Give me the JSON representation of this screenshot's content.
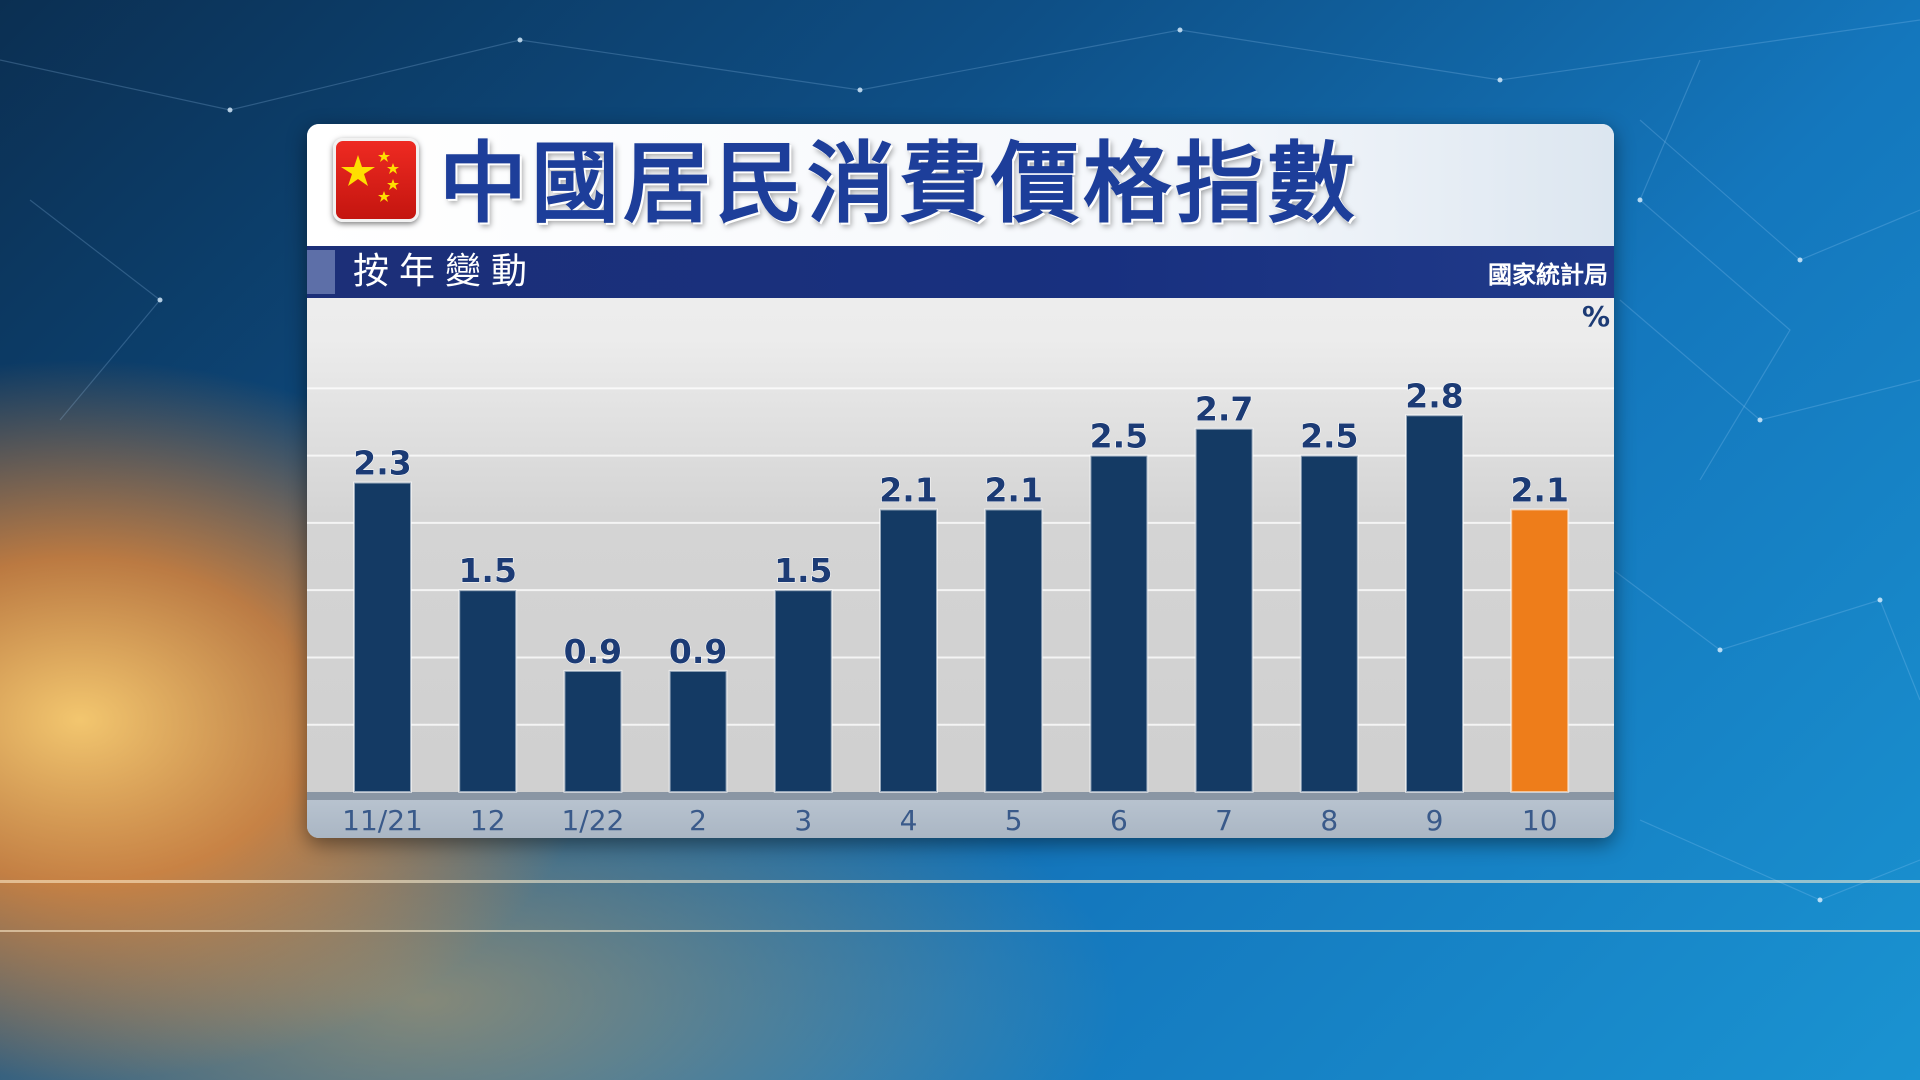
{
  "header": {
    "title": "中國居民消費價格指數",
    "subtitle": "按年變動",
    "source": "國家統計局"
  },
  "flag_icon": "china-flag-icon",
  "chart_data": {
    "type": "bar",
    "unit_label": "%",
    "categories": [
      "11/21",
      "12",
      "1/22",
      "2",
      "3",
      "4",
      "5",
      "6",
      "7",
      "8",
      "9",
      "10"
    ],
    "values": [
      2.3,
      1.5,
      0.9,
      0.9,
      1.5,
      2.1,
      2.1,
      2.5,
      2.7,
      2.5,
      2.8,
      2.1
    ],
    "data_labels": [
      "2.3",
      "1.5",
      "0.9",
      "0.9",
      "1.5",
      "2.1",
      "2.1",
      "2.5",
      "2.7",
      "2.5",
      "2.8",
      "2.1"
    ],
    "highlight_index": 11,
    "ylim": [
      0,
      3.3
    ],
    "grid": true,
    "colors": {
      "bar": "#143a64",
      "highlight": "#ee7d1a",
      "label": "#1c3b75",
      "tick": "#3a5a8a"
    }
  }
}
